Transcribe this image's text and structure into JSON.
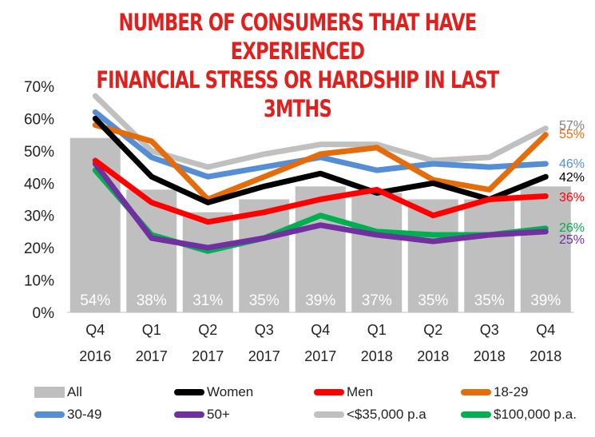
{
  "title_line1": "NUMBER OF CONSUMERS THAT HAVE EXPERIENCED",
  "title_line2": "FINANCIAL STRESS OR HARDSHIP IN LAST 3MTHS",
  "chart_data": {
    "type": "bar+line",
    "title": "NUMBER OF CONSUMERS THAT HAVE EXPERIENCED FINANCIAL STRESS OR HARDSHIP IN LAST 3MTHS",
    "categories": [
      [
        "Q4",
        "2016"
      ],
      [
        "Q1",
        "2017"
      ],
      [
        "Q2",
        "2017"
      ],
      [
        "Q3",
        "2017"
      ],
      [
        "Q4",
        "2017"
      ],
      [
        "Q1",
        "2018"
      ],
      [
        "Q2",
        "2018"
      ],
      [
        "Q3",
        "2018"
      ],
      [
        "Q4",
        "2018"
      ]
    ],
    "ylim": [
      0,
      70
    ],
    "yticks": [
      "0%",
      "10%",
      "20%",
      "30%",
      "40%",
      "50%",
      "60%",
      "70%"
    ],
    "bar_series": {
      "name": "All",
      "color": "#bfbfbf",
      "values": [
        54,
        38,
        31,
        35,
        39,
        37,
        35,
        35,
        39
      ],
      "labels": [
        "54%",
        "38%",
        "31%",
        "35%",
        "39%",
        "37%",
        "35%",
        "35%",
        "39%"
      ]
    },
    "series": [
      {
        "name": "Women",
        "color": "#000000",
        "values": [
          60,
          42,
          34,
          39,
          43,
          37,
          40,
          35,
          42
        ],
        "end_label": "42%"
      },
      {
        "name": "Men",
        "color": "#ff0000",
        "values": [
          47,
          34,
          28,
          31,
          35,
          38,
          30,
          35,
          36
        ],
        "end_label": "36%"
      },
      {
        "name": "18-29",
        "color": "#e46c0a",
        "values": [
          58,
          53,
          35,
          42,
          49,
          51,
          41,
          38,
          55
        ],
        "end_label": "55%"
      },
      {
        "name": "30-49",
        "color": "#558ed5",
        "values": [
          62,
          48,
          42,
          45,
          48,
          44,
          46,
          45,
          46
        ],
        "end_label": "46%"
      },
      {
        "name": "50+",
        "color": "#7030a0",
        "values": [
          46,
          23,
          20,
          23,
          27,
          24,
          22,
          24,
          25
        ],
        "end_label": "25%"
      },
      {
        "name": "<$35,000 p.a",
        "color": "#c0c0c0",
        "values": [
          67,
          50,
          45,
          49,
          52,
          52,
          47,
          48,
          57
        ],
        "end_label": "57%",
        "end_label_color": "#7f7f7f"
      },
      {
        "name": "$100,000 p.a.",
        "color": "#00b050",
        "values": [
          44,
          24,
          19,
          23,
          30,
          25,
          24,
          24,
          26
        ],
        "end_label": "26%"
      }
    ]
  },
  "legend": {
    "all": "All",
    "women": "Women",
    "men": "Men",
    "age_18_29": "18-29",
    "age_30_49": "30-49",
    "age_50_plus": "50+",
    "under_35k": "<$35,000 p.a",
    "over_100k": "$100,000 p.a."
  }
}
